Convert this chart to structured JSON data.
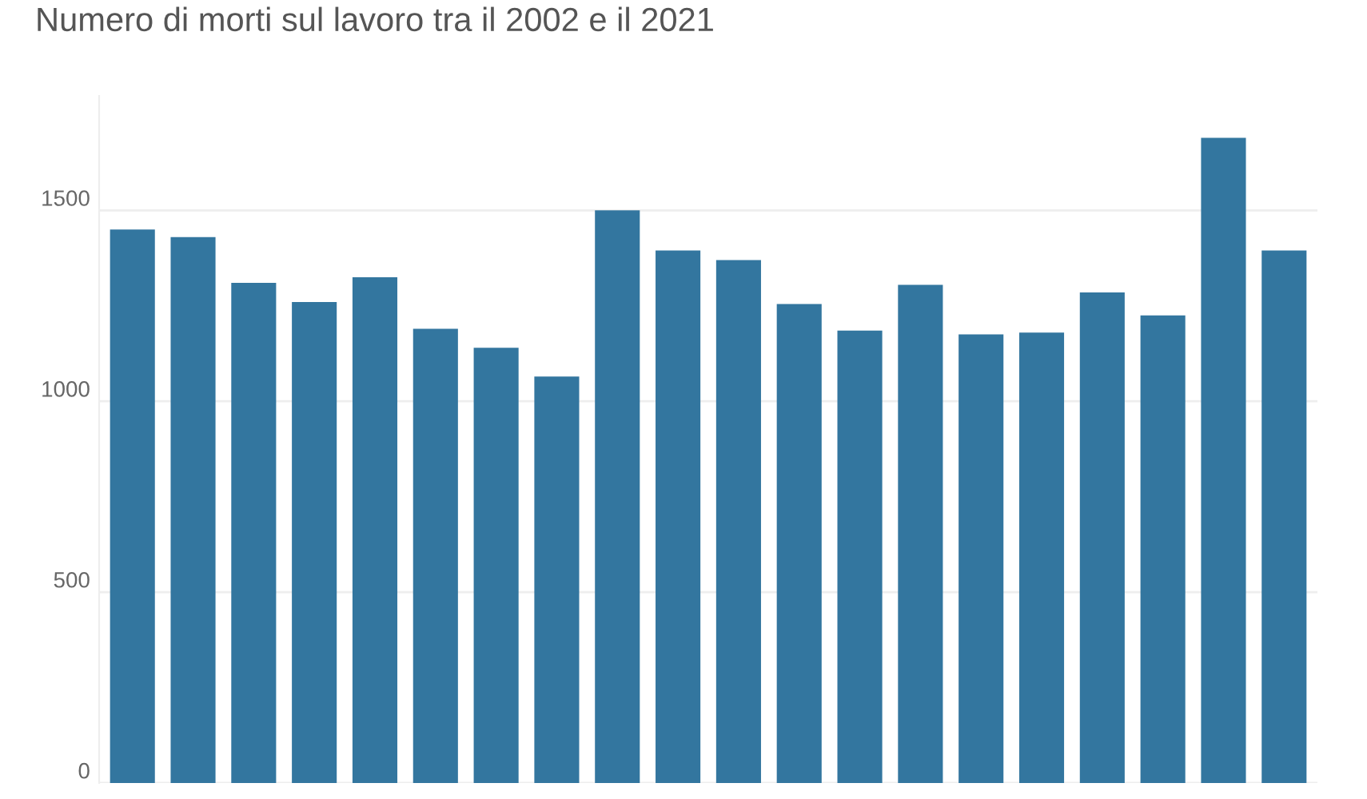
{
  "chart_data": {
    "type": "bar",
    "title": "Numero di morti sul lavoro tra il 2002 e il 2021",
    "categories": [
      null,
      null,
      null,
      null,
      null,
      null,
      null,
      null,
      null,
      null,
      null,
      null,
      null,
      null,
      null,
      null,
      null,
      null,
      null,
      null
    ],
    "values": [
      1450,
      1430,
      1310,
      1260,
      1325,
      1190,
      1140,
      1065,
      1500,
      1395,
      1370,
      1255,
      1185,
      1305,
      1175,
      1180,
      1285,
      1225,
      1690,
      1395
    ],
    "color": "#33769f",
    "ylim": [
      0,
      1800
    ],
    "yticks": [
      0,
      500,
      1000,
      1500
    ],
    "grid": "y",
    "tick_labels": "y"
  }
}
